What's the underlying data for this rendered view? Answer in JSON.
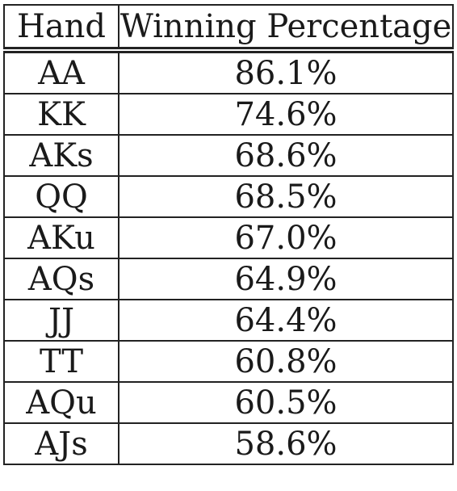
{
  "table": {
    "headers": [
      "Hand",
      "Winning Percentage"
    ],
    "rows": [
      {
        "hand": "AA",
        "pct": "86.1%"
      },
      {
        "hand": "KK",
        "pct": "74.6%"
      },
      {
        "hand": "AKs",
        "pct": "68.6%"
      },
      {
        "hand": "QQ",
        "pct": "68.5%"
      },
      {
        "hand": "AKu",
        "pct": "67.0%"
      },
      {
        "hand": "AQs",
        "pct": "64.9%"
      },
      {
        "hand": "JJ",
        "pct": "64.4%"
      },
      {
        "hand": "TT",
        "pct": "60.8%"
      },
      {
        "hand": "AQu",
        "pct": "60.5%"
      },
      {
        "hand": "AJs",
        "pct": "58.6%"
      }
    ]
  }
}
